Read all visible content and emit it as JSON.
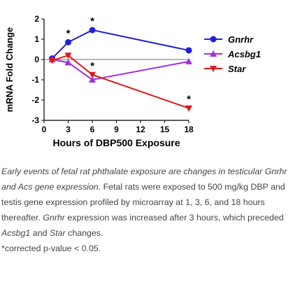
{
  "chart_data": {
    "type": "line",
    "xlabel": "Hours of DBP500 Exposure",
    "ylabel": "mRNA Fold Change",
    "x_ticks": [
      0,
      3,
      6,
      9,
      12,
      15,
      18
    ],
    "y_ticks": [
      -3,
      -2,
      -1,
      0,
      1,
      2
    ],
    "xlim": [
      0,
      18
    ],
    "ylim": [
      -3,
      2
    ],
    "reference_line": {
      "y": 0,
      "color": "#a0a0a0"
    },
    "legend_position": "right",
    "series": [
      {
        "name": "Gnrhr",
        "color": "#1f1fe0",
        "marker": "circle",
        "x": [
          1,
          3,
          6,
          18
        ],
        "y": [
          0.05,
          0.85,
          1.45,
          0.45
        ]
      },
      {
        "name": "Acsbg1",
        "color": "#a030e0",
        "marker": "triangle-up",
        "x": [
          1,
          3,
          6,
          18
        ],
        "y": [
          0.0,
          -0.15,
          -1.0,
          -0.1
        ]
      },
      {
        "name": "Star",
        "color": "#e01818",
        "marker": "triangle-down",
        "x": [
          1,
          3,
          6,
          18
        ],
        "y": [
          -0.05,
          0.2,
          -0.75,
          -2.4
        ]
      }
    ],
    "annotations": [
      {
        "text": "*",
        "x": 3,
        "y": 0.85
      },
      {
        "text": "*",
        "x": 6,
        "y": 1.45
      },
      {
        "text": "*",
        "x": 6,
        "y": -0.75
      },
      {
        "text": "*",
        "x": 18,
        "y": -2.4
      }
    ]
  },
  "caption": {
    "lead": "Early events of fetal rat phthalate exposure are changes in testicular Gnrhr and Acs gene expression.",
    "s1": "Fetal rats were exposed to 500 mg/kg DBP and testis gene expression profiled by microarray at 1, 3, 6, and 18 hours thereafter.",
    "s2_gene": "Gnrhr",
    "s2_a": "expression was increased after 3 hours, which preceded",
    "s2_gene2": "Acsbg1",
    "s2_and": "and",
    "s2_gene3": "Star",
    "s2_end": "changes.",
    "footnote": "*corrected p-value < 0.05."
  }
}
